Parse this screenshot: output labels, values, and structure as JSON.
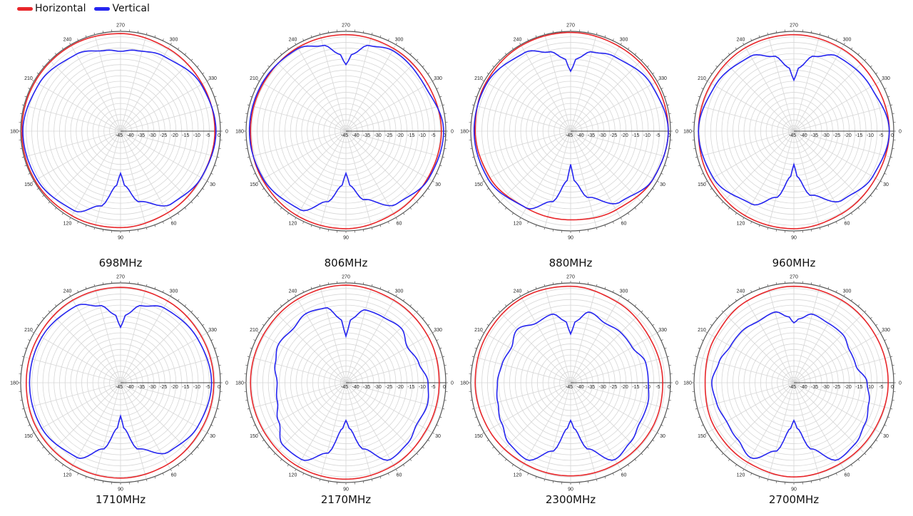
{
  "legend": {
    "horizontal_label": "Horizontal",
    "vertical_label": "Vertical",
    "horizontal_color": "#e8262a",
    "vertical_color": "#2525f0"
  },
  "chart_data": [
    {
      "type": "polar-line",
      "title": "698MHz",
      "angle_labels": [
        "0",
        "30",
        "60",
        "90",
        "120",
        "150",
        "180",
        "210",
        "240",
        "270",
        "300",
        "330"
      ],
      "radial_tick_labels": [
        "-45",
        "-40",
        "-35",
        "-30",
        "-25",
        "-20",
        "-15",
        "-10",
        "-5",
        "0"
      ],
      "rlim": [
        -45,
        0
      ],
      "angle_unit": "deg",
      "series": [
        {
          "name": "Horizontal",
          "color": "#e8262a",
          "angles": [
            0,
            30,
            60,
            90,
            120,
            150,
            180,
            210,
            240,
            270,
            300,
            330,
            360
          ],
          "values": [
            -2.5,
            -3,
            -2.5,
            -1.5,
            -1,
            -0.5,
            -0.5,
            -0.5,
            -0.5,
            -1,
            -2,
            -2.5,
            -2.5
          ]
        },
        {
          "name": "Vertical",
          "color": "#2525f0",
          "angles": [
            0,
            30,
            55,
            75,
            85,
            90,
            95,
            105,
            120,
            150,
            180,
            210,
            240,
            260,
            270,
            280,
            300,
            330,
            360
          ],
          "values": [
            -2,
            -3,
            -5,
            -12,
            -20,
            -26,
            -20,
            -10,
            -3.5,
            -1.5,
            -1,
            -2.5,
            -5,
            -8,
            -9,
            -8,
            -6,
            -3,
            -2
          ]
        }
      ]
    },
    {
      "type": "polar-line",
      "title": "806MHz",
      "angle_labels": [
        "0",
        "30",
        "60",
        "90",
        "120",
        "150",
        "180",
        "210",
        "240",
        "270",
        "300",
        "330"
      ],
      "radial_tick_labels": [
        "-45",
        "-40",
        "-35",
        "-30",
        "-25",
        "-20",
        "-15",
        "-10",
        "-5",
        "0"
      ],
      "rlim": [
        -45,
        0
      ],
      "angle_unit": "deg",
      "series": [
        {
          "name": "Horizontal",
          "color": "#e8262a",
          "angles": [
            0,
            30,
            60,
            90,
            120,
            150,
            180,
            210,
            240,
            270,
            300,
            330,
            360
          ],
          "values": [
            -2,
            -2.5,
            -2,
            -1,
            -1,
            -1.5,
            -2,
            -2,
            -1.5,
            -1.5,
            -2,
            -2.5,
            -2
          ]
        },
        {
          "name": "Vertical",
          "color": "#2525f0",
          "angles": [
            0,
            30,
            55,
            75,
            85,
            90,
            95,
            105,
            120,
            150,
            180,
            210,
            240,
            255,
            265,
            270,
            275,
            285,
            300,
            330,
            360
          ],
          "values": [
            -1,
            -2,
            -5,
            -13,
            -20,
            -26,
            -20,
            -12,
            -4,
            -2,
            -1.5,
            -1.5,
            -2,
            -5,
            -10,
            -15,
            -10,
            -5,
            -3,
            -4,
            -1
          ]
        }
      ]
    },
    {
      "type": "polar-line",
      "title": "880MHz",
      "angle_labels": [
        "0",
        "30",
        "60",
        "90",
        "120",
        "150",
        "180",
        "210",
        "240",
        "270",
        "300",
        "330"
      ],
      "radial_tick_labels": [
        "-45",
        "-40",
        "-35",
        "-30",
        "-25",
        "-20",
        "-15",
        "-10",
        "-5",
        "0"
      ],
      "rlim": [
        -45,
        0
      ],
      "angle_unit": "deg",
      "series": [
        {
          "name": "Horizontal",
          "color": "#e8262a",
          "angles": [
            0,
            30,
            60,
            90,
            120,
            150,
            180,
            210,
            240,
            270,
            300,
            330,
            360
          ],
          "values": [
            -1,
            -2,
            -4,
            -5,
            -5,
            -3,
            -2,
            -1,
            -0.5,
            -0.5,
            -1,
            -1,
            -1
          ]
        },
        {
          "name": "Vertical",
          "color": "#2525f0",
          "angles": [
            0,
            30,
            55,
            75,
            85,
            90,
            95,
            105,
            120,
            150,
            180,
            210,
            240,
            255,
            265,
            270,
            275,
            285,
            300,
            330,
            360
          ],
          "values": [
            -1,
            -2,
            -6,
            -14,
            -22,
            -30,
            -22,
            -12,
            -5,
            -2,
            -1.5,
            -1.5,
            -4,
            -8,
            -12,
            -18,
            -12,
            -8,
            -6,
            -3,
            -1
          ]
        }
      ]
    },
    {
      "type": "polar-line",
      "title": "960MHz",
      "angle_labels": [
        "0",
        "30",
        "60",
        "90",
        "120",
        "150",
        "180",
        "210",
        "240",
        "270",
        "300",
        "330"
      ],
      "radial_tick_labels": [
        "-45",
        "-40",
        "-35",
        "-30",
        "-25",
        "-20",
        "-15",
        "-10",
        "-5",
        "0"
      ],
      "rlim": [
        -45,
        0
      ],
      "angle_unit": "deg",
      "series": [
        {
          "name": "Horizontal",
          "color": "#e8262a",
          "angles": [
            0,
            30,
            60,
            90,
            120,
            150,
            180,
            210,
            240,
            270,
            300,
            330,
            360
          ],
          "values": [
            -2,
            -2.5,
            -2,
            -1,
            -1,
            -1.5,
            -2,
            -2,
            -1.5,
            -1.5,
            -2,
            -2.5,
            -2
          ]
        },
        {
          "name": "Vertical",
          "color": "#2525f0",
          "angles": [
            0,
            30,
            55,
            75,
            85,
            90,
            95,
            105,
            120,
            150,
            180,
            210,
            240,
            255,
            265,
            270,
            275,
            285,
            300,
            330,
            360
          ],
          "values": [
            -2,
            -4,
            -7,
            -15,
            -24,
            -30,
            -24,
            -14,
            -7,
            -3,
            -2,
            -4,
            -6,
            -10,
            -16,
            -22,
            -16,
            -10,
            -6,
            -5,
            -2
          ]
        }
      ]
    },
    {
      "type": "polar-line",
      "title": "1710MHz",
      "angle_labels": [
        "0",
        "30",
        "60",
        "90",
        "120",
        "150",
        "180",
        "210",
        "240",
        "270",
        "300",
        "330"
      ],
      "radial_tick_labels": [
        "-45",
        "-40",
        "-35",
        "-30",
        "-25",
        "-20",
        "-15",
        "-10",
        "-5",
        "0"
      ],
      "rlim": [
        -45,
        0
      ],
      "angle_unit": "deg",
      "series": [
        {
          "name": "Horizontal",
          "color": "#e8262a",
          "angles": [
            0,
            30,
            60,
            90,
            120,
            150,
            180,
            210,
            240,
            270,
            300,
            330,
            360
          ],
          "values": [
            -3,
            -3,
            -2.5,
            -2,
            -2,
            -2,
            -2.5,
            -2.5,
            -2,
            -2,
            -2.5,
            -3,
            -3
          ]
        },
        {
          "name": "Vertical",
          "color": "#2525f0",
          "angles": [
            0,
            30,
            55,
            75,
            85,
            90,
            95,
            105,
            120,
            150,
            180,
            210,
            240,
            255,
            265,
            270,
            275,
            285,
            300,
            330,
            360
          ],
          "values": [
            -4,
            -5,
            -7,
            -14,
            -24,
            -30,
            -24,
            -14,
            -6,
            -4,
            -4,
            -4,
            -5,
            -9,
            -14,
            -20,
            -14,
            -9,
            -6,
            -5,
            -4
          ]
        }
      ]
    },
    {
      "type": "polar-line",
      "title": "2170MHz",
      "angle_labels": [
        "0",
        "30",
        "60",
        "90",
        "120",
        "150",
        "180",
        "210",
        "240",
        "270",
        "300",
        "330"
      ],
      "radial_tick_labels": [
        "-45",
        "-40",
        "-35",
        "-30",
        "-25",
        "-20",
        "-15",
        "-10",
        "-5",
        "0"
      ],
      "rlim": [
        -45,
        0
      ],
      "angle_unit": "deg",
      "series": [
        {
          "name": "Horizontal",
          "color": "#e8262a",
          "angles": [
            0,
            30,
            60,
            90,
            120,
            150,
            180,
            210,
            240,
            270,
            300,
            330,
            360
          ],
          "values": [
            -3,
            -3,
            -2,
            -1.5,
            -1.5,
            -2,
            -2,
            -2,
            -1.5,
            -1,
            -2,
            -2.5,
            -3
          ]
        },
        {
          "name": "Vertical",
          "color": "#2525f0",
          "angles": [
            0,
            15,
            30,
            45,
            60,
            75,
            85,
            90,
            95,
            105,
            120,
            135,
            150,
            165,
            180,
            195,
            210,
            225,
            240,
            255,
            265,
            270,
            275,
            285,
            300,
            315,
            330,
            345,
            360
          ],
          "values": [
            -8,
            -7,
            -8,
            -6,
            -5,
            -14,
            -24,
            -28,
            -24,
            -12,
            -5,
            -5,
            -10,
            -13,
            -14,
            -12,
            -10,
            -11,
            -9,
            -10,
            -16,
            -24,
            -16,
            -11,
            -11,
            -10,
            -13,
            -11,
            -8
          ]
        }
      ]
    },
    {
      "type": "polar-line",
      "title": "2300MHz",
      "angle_labels": [
        "0",
        "30",
        "60",
        "90",
        "120",
        "150",
        "180",
        "210",
        "240",
        "270",
        "300",
        "330"
      ],
      "radial_tick_labels": [
        "-45",
        "-40",
        "-35",
        "-30",
        "-25",
        "-20",
        "-15",
        "-10",
        "-5",
        "0"
      ],
      "rlim": [
        -45,
        0
      ],
      "angle_unit": "deg",
      "series": [
        {
          "name": "Horizontal",
          "color": "#e8262a",
          "angles": [
            0,
            30,
            60,
            90,
            120,
            150,
            180,
            210,
            240,
            270,
            300,
            330,
            360
          ],
          "values": [
            -3.5,
            -3,
            -3,
            -3,
            -3,
            -2.5,
            -2,
            -1.5,
            -1,
            -1.5,
            -3,
            -4,
            -3.5
          ]
        },
        {
          "name": "Vertical",
          "color": "#2525f0",
          "angles": [
            0,
            15,
            30,
            45,
            60,
            75,
            85,
            90,
            95,
            105,
            120,
            135,
            150,
            165,
            180,
            195,
            210,
            225,
            240,
            255,
            265,
            270,
            275,
            285,
            300,
            315,
            330,
            345,
            360
          ],
          "values": [
            -10,
            -9,
            -9,
            -7,
            -5,
            -14,
            -24,
            -28,
            -24,
            -13,
            -5,
            -6,
            -9,
            -11,
            -12,
            -13,
            -14,
            -11,
            -14,
            -13,
            -17,
            -23,
            -17,
            -12,
            -14,
            -13,
            -13,
            -10,
            -10
          ]
        }
      ]
    },
    {
      "type": "polar-line",
      "title": "2700MHz",
      "angle_labels": [
        "0",
        "30",
        "60",
        "90",
        "120",
        "150",
        "180",
        "210",
        "240",
        "270",
        "300",
        "330"
      ],
      "radial_tick_labels": [
        "-45",
        "-40",
        "-35",
        "-30",
        "-25",
        "-20",
        "-15",
        "-10",
        "-5",
        "0"
      ],
      "rlim": [
        -45,
        0
      ],
      "angle_unit": "deg",
      "series": [
        {
          "name": "Horizontal",
          "color": "#e8262a",
          "angles": [
            0,
            30,
            60,
            90,
            120,
            150,
            180,
            210,
            240,
            270,
            300,
            330,
            360
          ],
          "values": [
            -2.5,
            -3,
            -3,
            -2.5,
            -3.5,
            -4,
            -5,
            -4,
            -2.5,
            -1.5,
            -2,
            -2.5,
            -2.5
          ]
        },
        {
          "name": "Vertical",
          "color": "#2525f0",
          "angles": [
            0,
            15,
            30,
            45,
            60,
            75,
            85,
            90,
            95,
            105,
            120,
            135,
            150,
            165,
            180,
            195,
            210,
            225,
            240,
            255,
            265,
            270,
            275,
            285,
            300,
            315,
            330,
            345,
            360
          ],
          "values": [
            -12,
            -10,
            -8,
            -6,
            -5,
            -14,
            -24,
            -28,
            -24,
            -13,
            -6,
            -9,
            -10,
            -9,
            -8,
            -10,
            -12,
            -12,
            -13,
            -12,
            -15,
            -18,
            -16,
            -13,
            -14,
            -14,
            -16,
            -16,
            -12
          ]
        }
      ]
    }
  ]
}
